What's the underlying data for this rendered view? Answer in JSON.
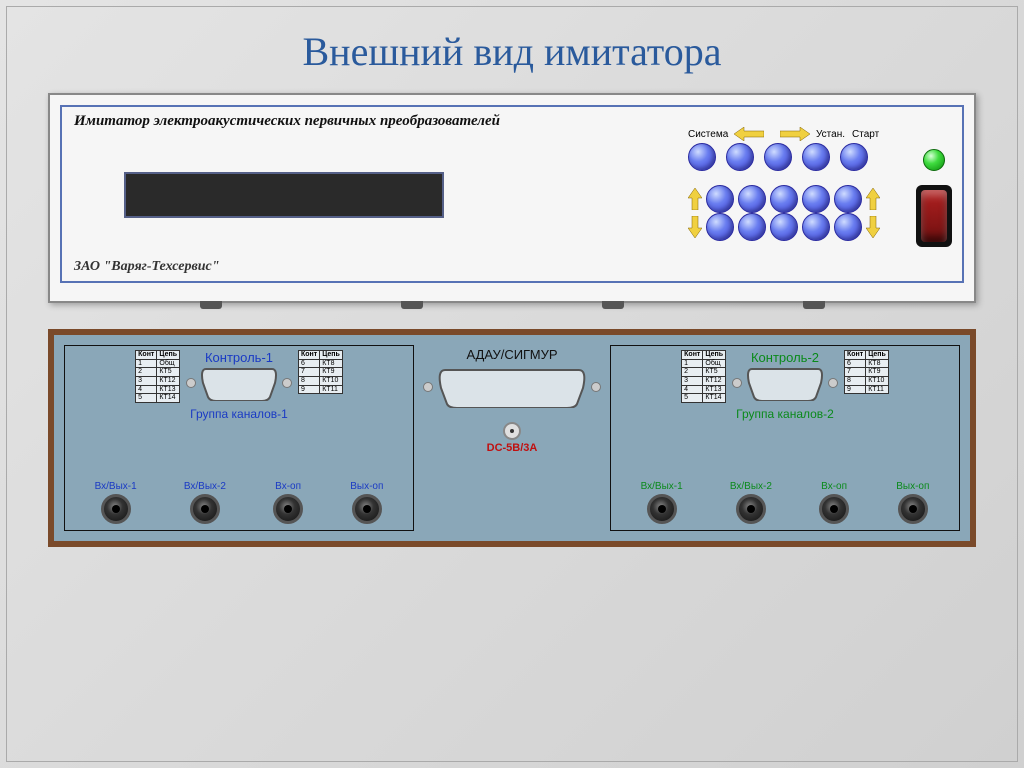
{
  "slide": {
    "title": "Внешний вид имитатора",
    "title_color": "#2a5a9c",
    "title_fontsize": 40,
    "background_gradient": [
      "#e4e4e4",
      "#d0d0d0"
    ]
  },
  "front_panel": {
    "title": "Имитатор электроакустических первичных преобразователей",
    "manufacturer": "ЗАО \"Варяг-Техсервис\"",
    "border_color": "#5772b5",
    "lcd_bg": "#2a2a2a",
    "button_color_gradient": [
      "#cfdcff",
      "#6a7ef0",
      "#3b3bd6"
    ],
    "arrow_color": "#f0d040",
    "top_labels": {
      "system": "Система",
      "set": "Устан.",
      "start": "Старт"
    },
    "led_color_gradient": [
      "#d6ffd6",
      "#3fdc3f",
      "#0a8a0a"
    ],
    "switch_rocker_color": "#b02020",
    "top_row_buttons": 5,
    "grid_rows": 2,
    "grid_cols": 5,
    "feet_count": 4
  },
  "back_panel": {
    "frame_color": "#7a4a2a",
    "body_color": "#8aa7b8",
    "center": {
      "title": "АДАУ/СИГМУР",
      "dc_label": "DC-5B/3A",
      "dc_label_color": "#c01010"
    },
    "group1": {
      "title": "Контроль-1",
      "title_color": "#1a3ac4",
      "subtitle": "Группа каналов-1",
      "subtitle_color": "#1a3ac4",
      "jack_label_color": "#1a3ac4",
      "jacks": [
        "Вх/Вых-1",
        "Вх/Вых-2",
        "Вх-оп",
        "Вых-оп"
      ],
      "pin_table_left": {
        "header": [
          "Конт",
          "Цепь"
        ],
        "rows": [
          [
            "1",
            "Общ"
          ],
          [
            "2",
            "КТ5"
          ],
          [
            "3",
            "КТ12"
          ],
          [
            "4",
            "КТ13"
          ],
          [
            "5",
            "КТ14"
          ]
        ]
      },
      "pin_table_right": {
        "header": [
          "Конт",
          "Цепь"
        ],
        "rows": [
          [
            "6",
            "КТ8"
          ],
          [
            "7",
            "КТ9"
          ],
          [
            "8",
            "КТ10"
          ],
          [
            "9",
            "КТ11"
          ]
        ]
      }
    },
    "group2": {
      "title": "Контроль-2",
      "title_color": "#0a8a1a",
      "subtitle": "Группа каналов-2",
      "subtitle_color": "#0a8a1a",
      "jack_label_color": "#0a8a1a",
      "jacks": [
        "Вх/Вых-1",
        "Вх/Вых-2",
        "Вх-оп",
        "Вых-оп"
      ],
      "pin_table_left": {
        "header": [
          "Конт",
          "Цепь"
        ],
        "rows": [
          [
            "1",
            "Общ"
          ],
          [
            "2",
            "КТ5"
          ],
          [
            "3",
            "КТ12"
          ],
          [
            "4",
            "КТ13"
          ],
          [
            "5",
            "КТ14"
          ]
        ]
      },
      "pin_table_right": {
        "header": [
          "Конт",
          "Цепь"
        ],
        "rows": [
          [
            "6",
            "КТ8"
          ],
          [
            "7",
            "КТ9"
          ],
          [
            "8",
            "КТ10"
          ],
          [
            "9",
            "КТ11"
          ]
        ]
      }
    },
    "jack_color": "#111"
  }
}
